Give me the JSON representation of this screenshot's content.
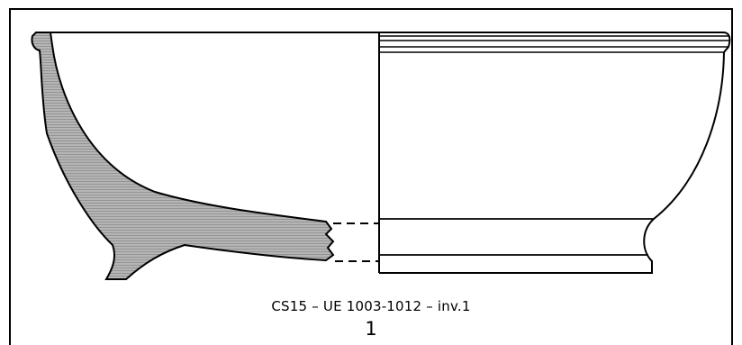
{
  "figure": {
    "caption": "CS15 – UE 1003-1012 – inv.1",
    "number": "1"
  },
  "colors": {
    "line": "#000000",
    "section_fill": "#b5b5b5",
    "hatch": "#8c8c8c",
    "background": "#ffffff"
  }
}
